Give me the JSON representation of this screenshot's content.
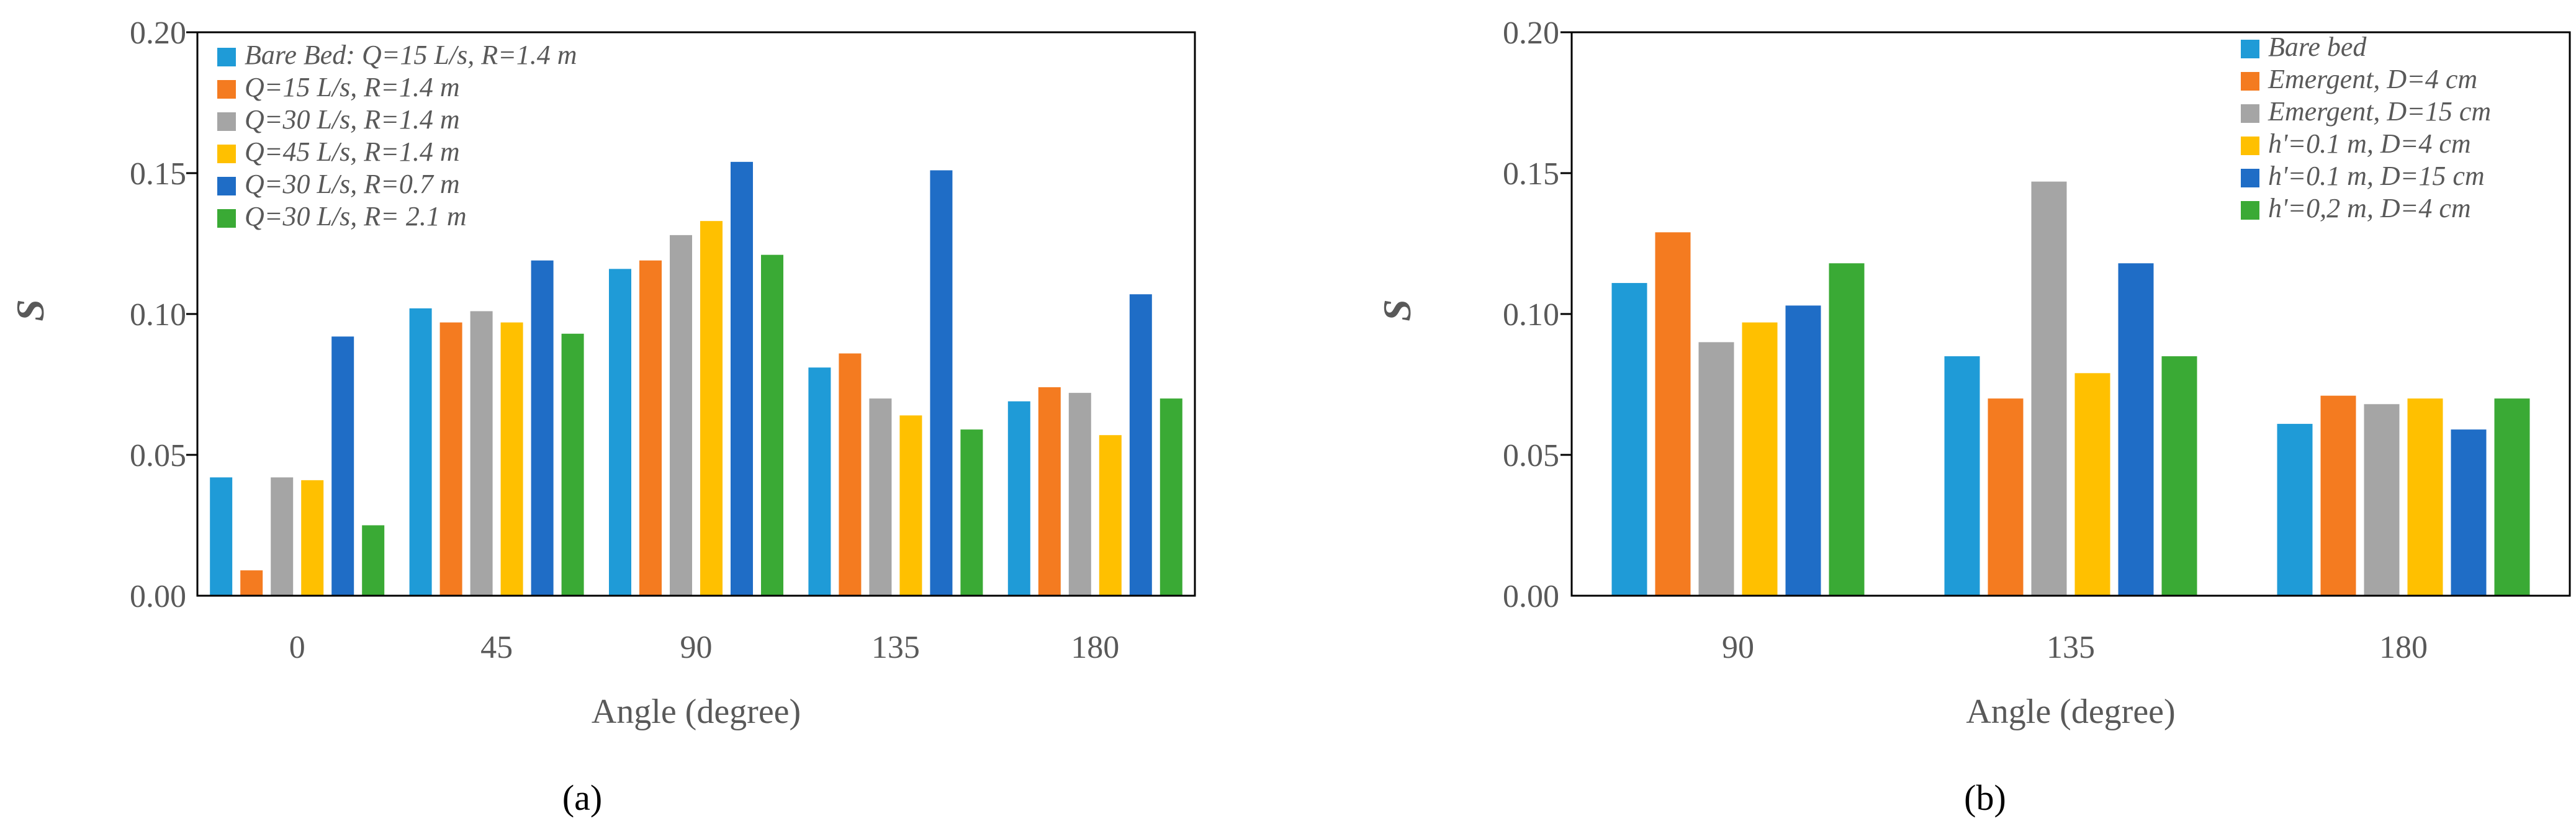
{
  "chart_data": [
    {
      "type": "bar",
      "panel": "a",
      "caption": "(a)",
      "xlabel": "Angle (degree)",
      "ylabel": "S",
      "ylim": [
        0,
        0.2
      ],
      "yticks": [
        "0.00",
        "0.05",
        "0.10",
        "0.15",
        "0.20"
      ],
      "categories": [
        "0",
        "45",
        "90",
        "135",
        "180"
      ],
      "legend_position": "top-left",
      "series": [
        {
          "name": "Bare Bed: Q=15 L/s, R=1.4 m",
          "color": "#1f9bd7",
          "values": [
            0.042,
            0.102,
            0.116,
            0.081,
            0.069
          ]
        },
        {
          "name": "Q=15 L/s, R=1.4 m",
          "color": "#f47b20",
          "values": [
            0.009,
            0.097,
            0.119,
            0.086,
            0.074
          ]
        },
        {
          "name": "Q=30 L/s, R=1.4 m",
          "color": "#a5a5a5",
          "values": [
            0.042,
            0.101,
            0.128,
            0.07,
            0.072
          ]
        },
        {
          "name": "Q=45 L/s, R=1.4 m",
          "color": "#ffc000",
          "values": [
            0.041,
            0.097,
            0.133,
            0.064,
            0.057
          ]
        },
        {
          "name": "Q=30 L/s, R=0.7 m",
          "color": "#1f6dc6",
          "values": [
            0.092,
            0.119,
            0.154,
            0.151,
            0.107
          ]
        },
        {
          "name": "Q=30 L/s, R= 2.1 m",
          "color": "#3aaa35",
          "values": [
            0.025,
            0.093,
            0.121,
            0.059,
            0.07
          ]
        }
      ]
    },
    {
      "type": "bar",
      "panel": "b",
      "caption": "(b)",
      "xlabel": "Angle (degree)",
      "ylabel": "S",
      "ylim": [
        0,
        0.2
      ],
      "yticks": [
        "0.00",
        "0.05",
        "0.10",
        "0.15",
        "0.20"
      ],
      "categories": [
        "90",
        "135",
        "180"
      ],
      "legend_position": "top-right",
      "series": [
        {
          "name": "Bare bed",
          "color": "#1f9bd7",
          "values": [
            0.111,
            0.085,
            0.061
          ]
        },
        {
          "name": "Emergent, D=4 cm",
          "color": "#f47b20",
          "values": [
            0.129,
            0.07,
            0.071
          ]
        },
        {
          "name": "Emergent, D=15 cm",
          "color": "#a5a5a5",
          "values": [
            0.09,
            0.147,
            0.068
          ]
        },
        {
          "name": "h'=0.1 m, D=4 cm",
          "color": "#ffc000",
          "values": [
            0.097,
            0.079,
            0.07
          ]
        },
        {
          "name": "h'=0.1 m, D=15 cm",
          "color": "#1f6dc6",
          "values": [
            0.103,
            0.118,
            0.059
          ]
        },
        {
          "name": "h'=0,2 m, D=4 cm",
          "color": "#3aaa35",
          "values": [
            0.118,
            0.085,
            0.07
          ]
        }
      ]
    }
  ]
}
